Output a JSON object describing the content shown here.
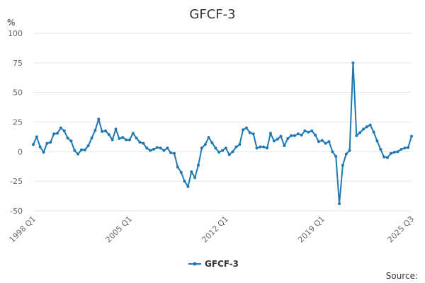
{
  "chart_data": {
    "type": "line",
    "title": "GFCF-3",
    "ylabel": "%",
    "ylim": [
      -50,
      100
    ],
    "yticks": [
      -50,
      -25,
      0,
      25,
      50,
      75,
      100
    ],
    "xticks": [
      "1998 Q1",
      "2005 Q1",
      "2012 Q1",
      "2019 Q1",
      "2025 Q3"
    ],
    "grid": true,
    "legend": "bottom",
    "color": "#1f77b4",
    "source_label": "Source:",
    "series": [
      {
        "name": "GFCF-3",
        "x": [
          "1998 Q1",
          "1998 Q2",
          "1998 Q3",
          "1998 Q4",
          "1999 Q1",
          "1999 Q2",
          "1999 Q3",
          "1999 Q4",
          "2000 Q1",
          "2000 Q2",
          "2000 Q3",
          "2000 Q4",
          "2001 Q1",
          "2001 Q2",
          "2001 Q3",
          "2001 Q4",
          "2002 Q1",
          "2002 Q2",
          "2002 Q3",
          "2002 Q4",
          "2003 Q1",
          "2003 Q2",
          "2003 Q3",
          "2003 Q4",
          "2004 Q1",
          "2004 Q2",
          "2004 Q3",
          "2004 Q4",
          "2005 Q1",
          "2005 Q2",
          "2005 Q3",
          "2005 Q4",
          "2006 Q1",
          "2006 Q2",
          "2006 Q3",
          "2006 Q4",
          "2007 Q1",
          "2007 Q2",
          "2007 Q3",
          "2007 Q4",
          "2008 Q1",
          "2008 Q2",
          "2008 Q3",
          "2008 Q4",
          "2009 Q1",
          "2009 Q2",
          "2009 Q3",
          "2009 Q4",
          "2010 Q1",
          "2010 Q2",
          "2010 Q3",
          "2010 Q4",
          "2011 Q1",
          "2011 Q2",
          "2011 Q3",
          "2011 Q4",
          "2012 Q1",
          "2012 Q2",
          "2012 Q3",
          "2012 Q4",
          "2013 Q1",
          "2013 Q2",
          "2013 Q3",
          "2013 Q4",
          "2014 Q1",
          "2014 Q2",
          "2014 Q3",
          "2014 Q4",
          "2015 Q1",
          "2015 Q2",
          "2015 Q3",
          "2015 Q4",
          "2016 Q1",
          "2016 Q2",
          "2016 Q3",
          "2016 Q4",
          "2017 Q1",
          "2017 Q2",
          "2017 Q3",
          "2017 Q4",
          "2018 Q1",
          "2018 Q2",
          "2018 Q3",
          "2018 Q4",
          "2019 Q1",
          "2019 Q2",
          "2019 Q3",
          "2019 Q4",
          "2020 Q1",
          "2020 Q2",
          "2020 Q3",
          "2020 Q4",
          "2021 Q1",
          "2021 Q2",
          "2021 Q3",
          "2021 Q4",
          "2022 Q1",
          "2022 Q2",
          "2022 Q3",
          "2022 Q4",
          "2023 Q1",
          "2023 Q2",
          "2023 Q3",
          "2023 Q4",
          "2024 Q1",
          "2024 Q2",
          "2024 Q3",
          "2024 Q4",
          "2025 Q1",
          "2025 Q2",
          "2025 Q3"
        ],
        "values": [
          6,
          12.5,
          4,
          -0.5,
          7,
          8,
          15,
          15.5,
          20,
          17.5,
          11.5,
          9,
          1,
          -2,
          1.5,
          1.5,
          5,
          11.5,
          18,
          27.5,
          17,
          17.5,
          14.5,
          10,
          19,
          11,
          12,
          10,
          10,
          15.5,
          11.5,
          8,
          7,
          3,
          1,
          2,
          3.5,
          3,
          1,
          3,
          -1,
          -1.5,
          -13,
          -17.5,
          -25,
          -29.5,
          -17,
          -22,
          -11.5,
          3,
          6,
          12,
          7.5,
          3,
          -0.5,
          1,
          3,
          -2.5,
          0,
          4,
          6,
          18.5,
          20,
          16,
          15,
          3,
          4,
          4,
          3,
          15.5,
          9,
          10.5,
          13,
          5,
          11,
          13.5,
          13.5,
          15,
          14,
          17.5,
          16.5,
          17.5,
          14,
          8.5,
          9.5,
          7,
          8.5,
          0,
          -4,
          -44,
          -11.5,
          -2,
          1,
          75,
          13.5,
          16,
          19,
          21,
          22.5,
          16.5,
          9,
          2,
          -4.5,
          -5,
          -1.5,
          -0.5,
          0,
          2,
          3,
          3.5,
          13
        ]
      }
    ]
  }
}
